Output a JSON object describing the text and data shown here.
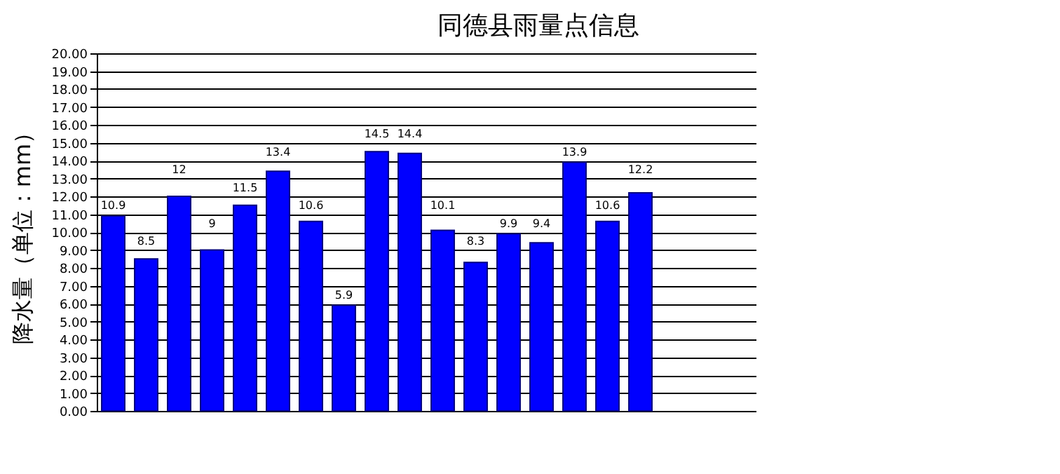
{
  "chart_data": {
    "type": "bar",
    "title": "同德县雨量点信息",
    "ylabel": "降水量（单位：mm）",
    "categories": [
      null,
      null,
      null,
      null,
      null,
      null,
      null,
      null,
      null,
      null,
      null,
      null,
      null,
      null,
      null,
      null,
      null,
      null,
      null,
      null
    ],
    "values": [
      10.9,
      8.5,
      12,
      9,
      11.5,
      13.4,
      10.6,
      5.9,
      14.5,
      14.4,
      10.1,
      8.3,
      9.9,
      9.4,
      13.9,
      10.6,
      12.2,
      null,
      null,
      null
    ],
    "color": "#0000ff",
    "data_labels": true,
    "grid": "y",
    "ylim": [
      0,
      20
    ],
    "yticks": [
      {
        "value": 0,
        "label": "0.00"
      },
      {
        "value": 1,
        "label": "1.00"
      },
      {
        "value": 2,
        "label": "2.00"
      },
      {
        "value": 3,
        "label": "3.00"
      },
      {
        "value": 4,
        "label": "4.00"
      },
      {
        "value": 5,
        "label": "5.00"
      },
      {
        "value": 6,
        "label": "6.00"
      },
      {
        "value": 7,
        "label": "7.00"
      },
      {
        "value": 8,
        "label": "8.00"
      },
      {
        "value": 9,
        "label": "9.00"
      },
      {
        "value": 10,
        "label": "10.00"
      },
      {
        "value": 11,
        "label": "11.00"
      },
      {
        "value": 12,
        "label": "12.00"
      },
      {
        "value": 13,
        "label": "13.00"
      },
      {
        "value": 14,
        "label": "14.00"
      },
      {
        "value": 15,
        "label": "15.00"
      },
      {
        "value": 16,
        "label": "16.00"
      },
      {
        "value": 17,
        "label": "17.00"
      },
      {
        "value": 18,
        "label": "18.00"
      },
      {
        "value": 19,
        "label": "19.00"
      },
      {
        "value": 20,
        "label": "20.00"
      }
    ]
  }
}
